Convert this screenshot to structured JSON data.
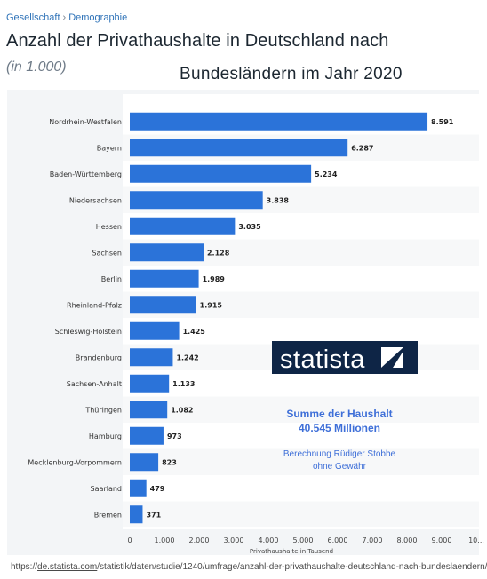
{
  "header": {
    "breadcrumb": [
      "Gesellschaft",
      "Demographie"
    ],
    "breadcrumb_separator": "›",
    "title_line1": "Anzahl der Privathaushalte in Deutschland nach",
    "unit": "(in 1.000)",
    "title_line2": "Bundesländern im Jahr 2020"
  },
  "chart_data": {
    "type": "bar",
    "orientation": "horizontal",
    "categories": [
      "Nordrhein-Westfalen",
      "Bayern",
      "Baden-Württemberg",
      "Niedersachsen",
      "Hessen",
      "Sachsen",
      "Berlin",
      "Rheinland-Pfalz",
      "Schleswig-Holstein",
      "Brandenburg",
      "Sachsen-Anhalt",
      "Thüringen",
      "Hamburg",
      "Mecklenburg-Vorpommern",
      "Saarland",
      "Bremen"
    ],
    "values": [
      8591,
      6287,
      5234,
      3838,
      3035,
      2128,
      1989,
      1915,
      1425,
      1242,
      1133,
      1082,
      973,
      823,
      479,
      371
    ],
    "value_labels": [
      "8.591",
      "6.287",
      "5.234",
      "3.838",
      "3.035",
      "2.128",
      "1.989",
      "1.915",
      "1.425",
      "1.242",
      "1.133",
      "1.082",
      "973",
      "823",
      "479",
      "371"
    ],
    "xlabel": "Privathaushalte in Tausend",
    "xlim": [
      0,
      10000
    ],
    "x_ticks": [
      0,
      1000,
      2000,
      3000,
      4000,
      5000,
      6000,
      7000,
      8000,
      9000,
      10000
    ],
    "x_tick_labels": [
      "0",
      "1.000",
      "2.000",
      "3.000",
      "4.000",
      "5.000",
      "6.000",
      "7.000",
      "8.000",
      "9.000",
      "10..."
    ],
    "bar_color": "#2b73d9",
    "grid": false,
    "annotations": {
      "logo_text": "statista",
      "sum_line1": "Summe der Haushalt",
      "sum_line2": "40.545 Millionen",
      "credit_line1": "Berechnung Rüdiger Stobbe",
      "credit_line2": "ohne Gewähr",
      "sum_color": "#3e6fd8"
    }
  },
  "footer": {
    "url_prefix": "https://",
    "url_domain": "de.statista.com",
    "url_path": "/statistik/daten/studie/1240/umfrage/anzahl-der-privathaushalte-deutschland-nach-bundeslaendern/"
  }
}
